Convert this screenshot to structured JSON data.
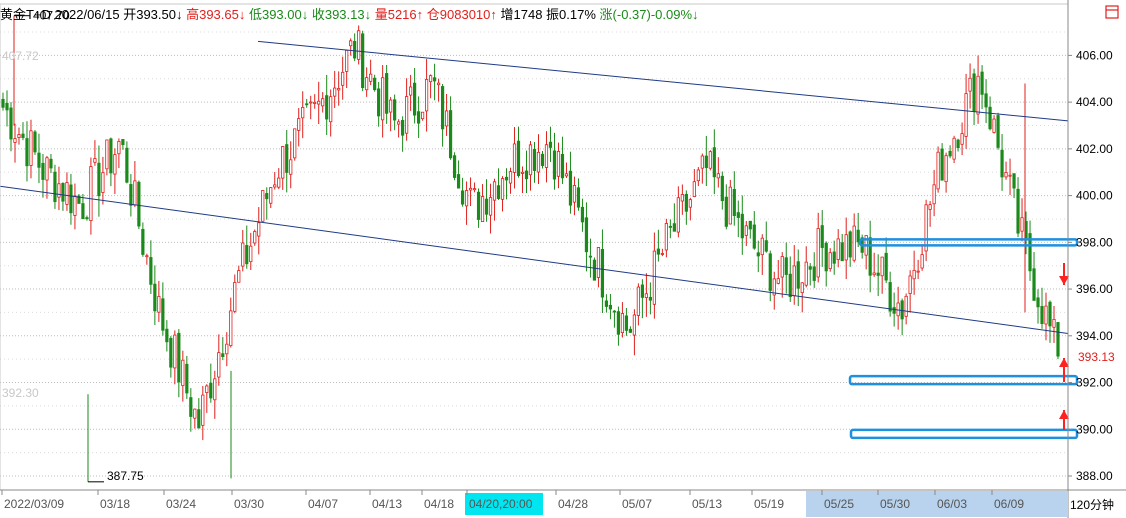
{
  "header": {
    "segments": [
      {
        "text": "黄金T+D",
        "color": "#000000"
      },
      {
        "text": " 2022/06/15",
        "color": "#000000"
      },
      {
        "text": " 开393.50↓",
        "color": "#000000"
      },
      {
        "text": " 高393.65↓",
        "color": "#e0201c"
      },
      {
        "text": " 低393.00↓",
        "color": "#1a8a1a"
      },
      {
        "text": " 收393.13↓",
        "color": "#1a8a1a"
      },
      {
        "text": " 量5216↑",
        "color": "#e0201c"
      },
      {
        "text": " 仓9083010↑",
        "color": "#e0201c"
      },
      {
        "text": " 增1748",
        "color": "#000000"
      },
      {
        "text": " 振0.17%",
        "color": "#000000"
      },
      {
        "text": " 涨(-0.37)-0.09%↓",
        "color": "#1a8a1a"
      }
    ],
    "corner_icon": "square-icon"
  },
  "y_axis": {
    "ticks": [
      "406.00",
      "404.00",
      "402.00",
      "400.00",
      "398.00",
      "396.00",
      "394.00",
      "392.00",
      "390.00",
      "388.00"
    ],
    "last_price_label": "393.13",
    "unit_label": "120分钟"
  },
  "x_axis": {
    "ticks": [
      "2022/03/09",
      "03/18",
      "03/24",
      "03/30",
      "04/07",
      "04/13",
      "04/18",
      "04/20,20:00",
      "04/28",
      "05/07",
      "05/13",
      "05/19",
      "05/25",
      "05/30",
      "06/03",
      "06/09"
    ],
    "highlight_tick": "04/20,20:00"
  },
  "annotations": {
    "max_label": "407.70",
    "min_label": "387.75",
    "faint_left_top": "407.72",
    "faint_left_mid": "392.30"
  },
  "colors": {
    "up": "#e0201c",
    "down": "#1a8a1a",
    "trendline": "#1f3a86",
    "zone": "#1e90e0",
    "arrow": "#ff2020",
    "highlight_bg": "#00e6f0",
    "xaxis_band": "#b9d3ee"
  },
  "chart_data": {
    "type": "candlestick",
    "title": "黄金T+D 120分钟",
    "ylim": [
      387.4,
      408.2
    ],
    "grid": true,
    "x": [
      "2022/03/09",
      "03/18",
      "03/24",
      "03/30",
      "04/07",
      "04/13",
      "04/18",
      "04/20",
      "04/28",
      "05/07",
      "05/13",
      "05/19",
      "05/25",
      "05/30",
      "06/03",
      "06/09",
      "06/15"
    ],
    "close_series": [
      403.8,
      401.2,
      399.6,
      402.3,
      395.0,
      390.2,
      396.3,
      401.2,
      403.5,
      406.4,
      403.0,
      404.8,
      399.4,
      401.5,
      402.3,
      397.8,
      394.2,
      398.0,
      401.1,
      398.2,
      396.2,
      397.8,
      397.8,
      395.2,
      401.4,
      405.2,
      398.5,
      393.13
    ],
    "open": 393.5,
    "high": 393.65,
    "low": 393.0,
    "close": 393.13,
    "max": 407.7,
    "min": 387.75,
    "support_zones": [
      398.0,
      392.1,
      389.8
    ],
    "trendlines": [
      {
        "from": [
          "03/09",
          400.4
        ],
        "to": [
          "06/15",
          394.1
        ]
      },
      {
        "from": [
          "03/14",
          406.6
        ],
        "to": [
          "06/15",
          403.2
        ]
      }
    ]
  }
}
